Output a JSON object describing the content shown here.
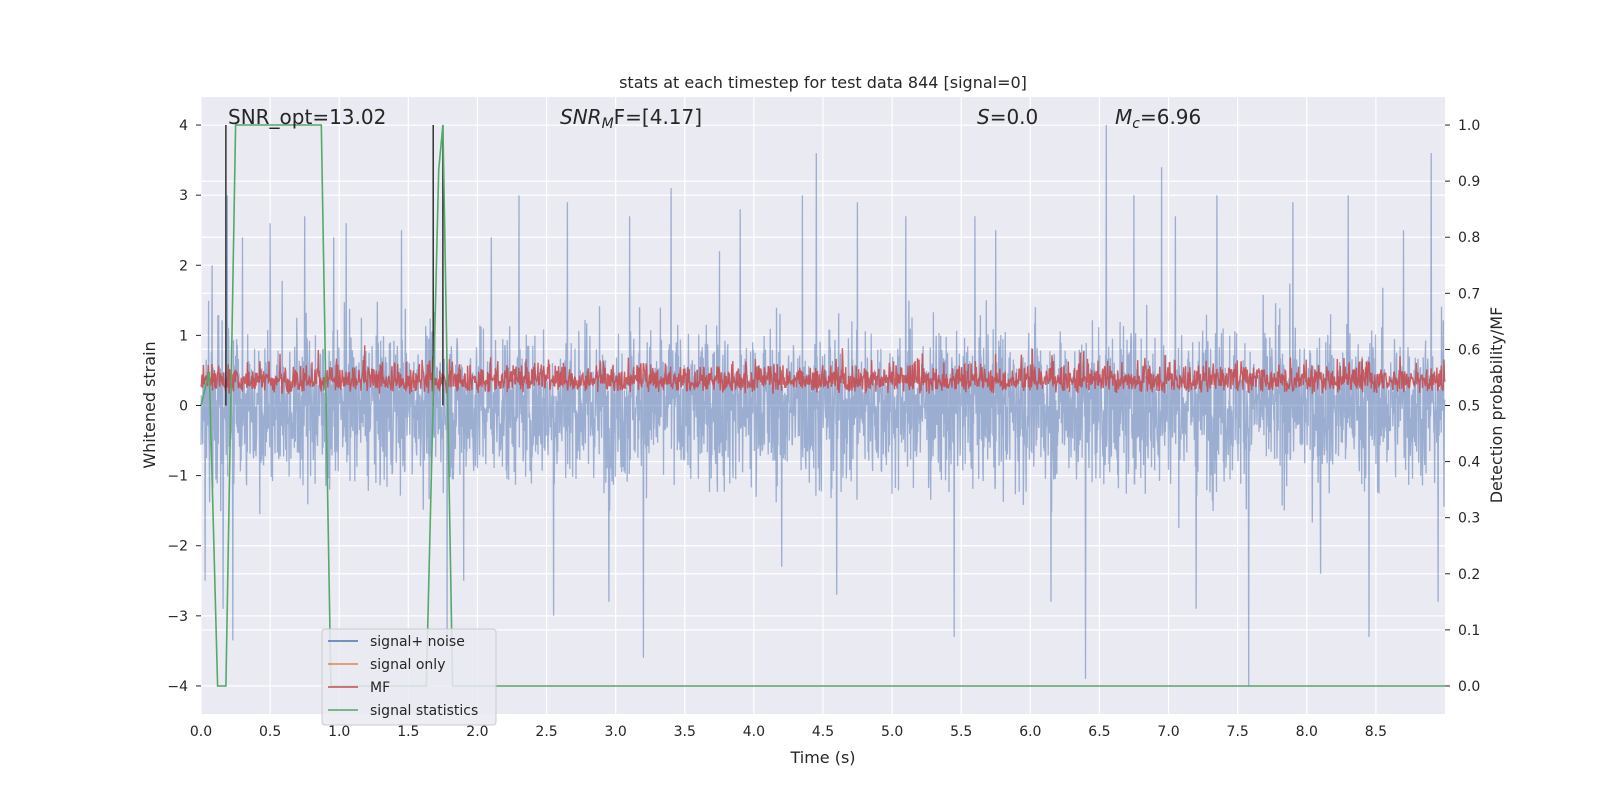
{
  "colors": {
    "background": "#eaeaf2",
    "grid": "#ffffff",
    "text": "#262626",
    "noise": "#4c72b0",
    "signal_only": "#dd8452",
    "mf": "#c44e52",
    "stats": "#55a868",
    "marker": "#333333"
  },
  "chart_data": {
    "type": "line",
    "title": "stats at each timestep for test data 844 [signal=0]",
    "xlabel": "Time (s)",
    "ylabel_left": "Whitened strain",
    "ylabel_right": "Detection probability/MF",
    "xlim": [
      0,
      9.0
    ],
    "ylim_left": [
      -4.4,
      4.4
    ],
    "ylim_right": [
      -0.05,
      1.05
    ],
    "x_ticks": [
      0,
      0.5,
      1,
      1.5,
      2,
      2.5,
      3,
      3.5,
      4,
      4.5,
      5,
      5.5,
      6,
      6.5,
      7,
      7.5,
      8,
      8.5
    ],
    "x_tick_labels": [
      "0.0",
      "0.5",
      "1.0",
      "1.5",
      "2.0",
      "2.5",
      "3.0",
      "3.5",
      "4.0",
      "4.5",
      "5.0",
      "5.5",
      "6.0",
      "6.5",
      "7.0",
      "7.5",
      "8.0",
      "8.5"
    ],
    "y_ticks_left": [
      -4,
      -3,
      -2,
      -1,
      0,
      1,
      2,
      3,
      4
    ],
    "y_tick_labels_left": [
      "−4",
      "−3",
      "−2",
      "−1",
      "0",
      "1",
      "2",
      "3",
      "4"
    ],
    "y_ticks_right": [
      0.0,
      0.1,
      0.2,
      0.3,
      0.4,
      0.5,
      0.6,
      0.7,
      0.8,
      0.9,
      1.0
    ],
    "y_tick_labels_right": [
      "0.0",
      "0.1",
      "0.2",
      "0.3",
      "0.4",
      "0.5",
      "0.6",
      "0.7",
      "0.8",
      "0.9",
      "1.0"
    ],
    "annotations": {
      "snr_opt": "SNR_opt=13.02",
      "snr_mf_name": "SNR",
      "snr_mf_sub": "M",
      "snr_mf_tail": "F=[4.17]",
      "s_name": "S",
      "s_value": "=0.0",
      "mc_name": "M",
      "mc_sub": "c",
      "mc_value": "=6.96"
    },
    "legend": {
      "position": "lower-left",
      "entries": [
        "signal+ noise",
        "signal only",
        "MF",
        "signal statistics"
      ]
    },
    "series": [
      {
        "name": "signal+ noise",
        "axis": "left",
        "description": "whitened strain noise, envelope approx ±1.6 with spikes to ±4",
        "spikes": [
          [
            0.03,
            -2.5
          ],
          [
            0.08,
            2.0
          ],
          [
            0.16,
            -2.9
          ],
          [
            0.19,
            3.0
          ],
          [
            0.23,
            -3.35
          ],
          [
            0.3,
            2.4
          ],
          [
            0.5,
            2.6
          ],
          [
            0.75,
            2.7
          ],
          [
            0.96,
            2.4
          ],
          [
            1.05,
            2.6
          ],
          [
            1.45,
            2.5
          ],
          [
            1.78,
            -3.4
          ],
          [
            1.9,
            -2.5
          ],
          [
            2.1,
            2.4
          ],
          [
            2.3,
            3.0
          ],
          [
            2.55,
            -3.0
          ],
          [
            2.65,
            2.9
          ],
          [
            2.95,
            -2.8
          ],
          [
            3.1,
            2.7
          ],
          [
            3.2,
            -3.6
          ],
          [
            3.4,
            3.1
          ],
          [
            3.75,
            2.2
          ],
          [
            3.9,
            2.8
          ],
          [
            4.2,
            -2.3
          ],
          [
            4.35,
            3.0
          ],
          [
            4.45,
            3.6
          ],
          [
            4.6,
            -2.7
          ],
          [
            4.75,
            2.9
          ],
          [
            5.1,
            2.7
          ],
          [
            5.45,
            -3.3
          ],
          [
            5.6,
            2.7
          ],
          [
            5.75,
            2.5
          ],
          [
            6.15,
            -2.8
          ],
          [
            6.4,
            3.3
          ],
          [
            6.4,
            -3.9
          ],
          [
            6.55,
            4.0
          ],
          [
            6.75,
            3.0
          ],
          [
            6.95,
            3.4
          ],
          [
            7.05,
            2.7
          ],
          [
            7.2,
            -2.9
          ],
          [
            7.35,
            3.0
          ],
          [
            7.58,
            -4.0
          ],
          [
            7.9,
            2.9
          ],
          [
            8.1,
            -2.4
          ],
          [
            8.3,
            3.0
          ],
          [
            8.45,
            -3.3
          ],
          [
            8.7,
            2.5
          ],
          [
            8.9,
            3.6
          ],
          [
            8.95,
            -2.8
          ]
        ],
        "values": []
      },
      {
        "name": "signal only",
        "axis": "left",
        "values": []
      },
      {
        "name": "MF",
        "axis": "right",
        "description": "matched filter output fluctuating between approx 0.5 and 0.6",
        "values": []
      },
      {
        "name": "signal statistics",
        "axis": "right",
        "x": [
          0.0,
          0.06,
          0.12,
          0.18,
          0.25,
          0.87,
          0.94,
          1.0,
          1.63,
          1.72,
          1.75,
          1.82,
          1.9,
          9.0
        ],
        "values": [
          0.5,
          0.56,
          0.0,
          0.0,
          1.0,
          1.0,
          0.0,
          0.0,
          0.0,
          0.92,
          1.0,
          0.0,
          0.0,
          0.0
        ]
      }
    ],
    "markers": {
      "name": "detection markers",
      "x": [
        0.18,
        1.68,
        1.75
      ]
    }
  }
}
